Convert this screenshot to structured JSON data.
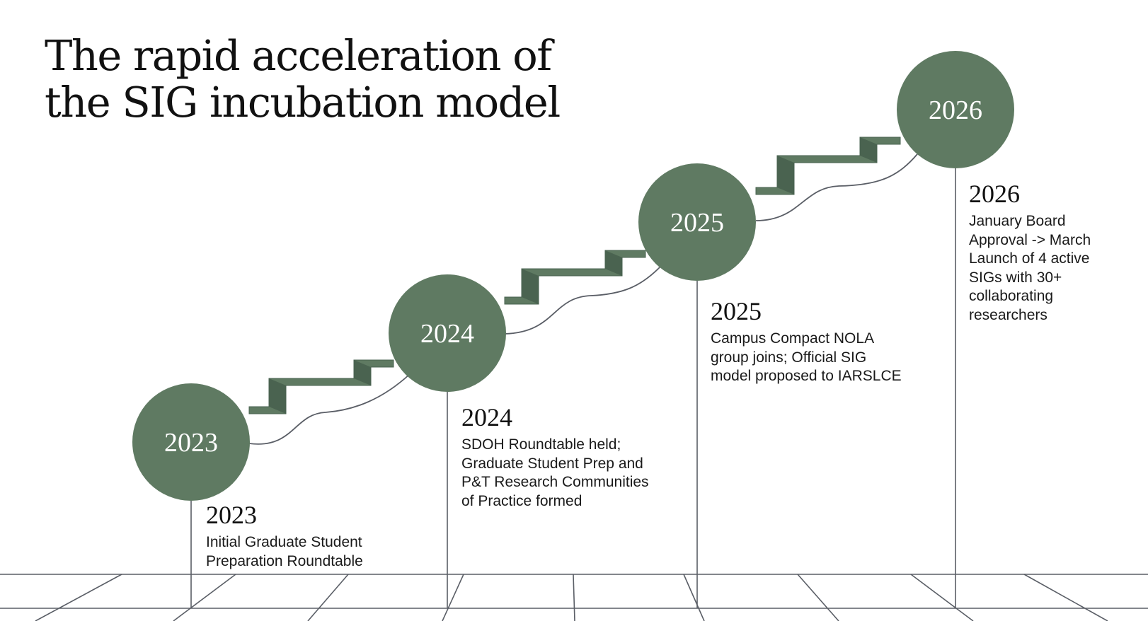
{
  "title": {
    "line1": "The rapid acceleration of",
    "line2": "the SIG incubation model"
  },
  "colors": {
    "accent": "#5f7a62",
    "stair_shade": "#4a6350",
    "line": "#5a5e66",
    "text": "#111111"
  },
  "milestones": [
    {
      "circle_label": "2023",
      "year": "2023",
      "description": "Initial Graduate Student Preparation Roundtable"
    },
    {
      "circle_label": "2024",
      "year": "2024",
      "description": "SDOH Roundtable held; Graduate Student Prep and P&T Research Communities of Practice formed"
    },
    {
      "circle_label": "2025",
      "year": "2025",
      "description": "Campus Compact NOLA group joins; Official SIG model proposed to IARSLCE"
    },
    {
      "circle_label": "2026",
      "year": "2026",
      "description": "January Board Approval -> March Launch of 4 active SIGs with 30+ collaborating researchers"
    }
  ]
}
